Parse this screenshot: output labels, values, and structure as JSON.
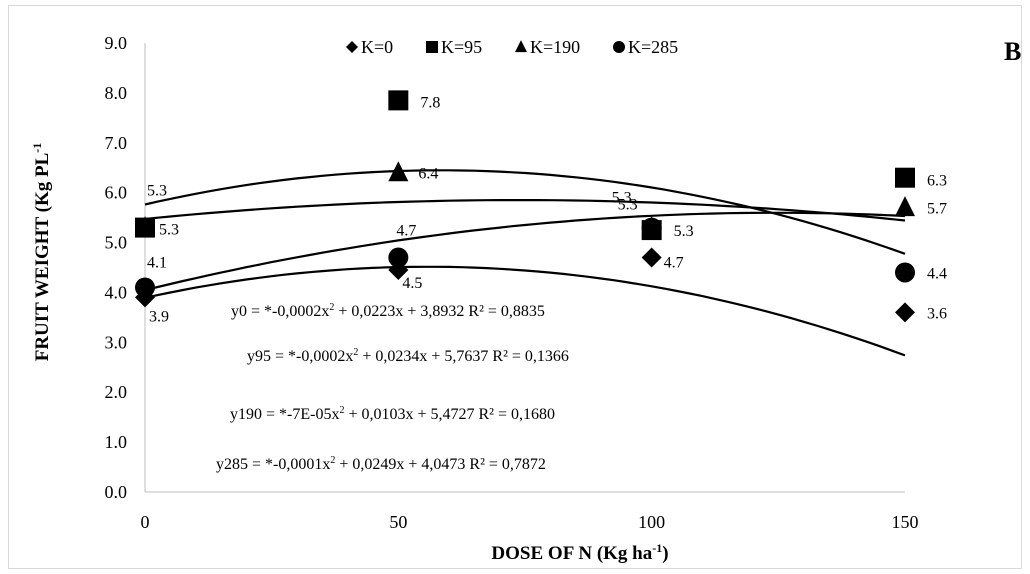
{
  "chart_data": {
    "type": "scatter",
    "panel_label": "B",
    "xlabel": "DOSE OF N (Kg ha",
    "xlabel_sup": "-1",
    "xlabel_end": ")",
    "ylabel": "FRUIT WEIGHT (Kg PL",
    "ylabel_sup": "-1",
    "xlim": [
      0,
      150
    ],
    "ylim": [
      0.0,
      9.0
    ],
    "x_ticks": [
      "0",
      "50",
      "100",
      "150"
    ],
    "y_ticks": [
      "0.0",
      "1.0",
      "2.0",
      "3.0",
      "4.0",
      "5.0",
      "6.0",
      "7.0",
      "8.0",
      "9.0"
    ],
    "grid": false,
    "legend_position": "top-center",
    "series": [
      {
        "name": "K=0",
        "marker": "diamond",
        "x": [
          0,
          50,
          100,
          150
        ],
        "y": [
          3.9,
          4.45,
          4.7,
          3.6
        ],
        "labels": [
          "3.9",
          "4.5",
          "4.7",
          "3.6"
        ],
        "trend": {
          "a": -0.0002,
          "b": 0.0223,
          "c": 3.8932
        },
        "equation": {
          "prefix": "y0 = *-0,0002x",
          "sup": "2",
          "rest": " + 0,0223x + 3,8932  R² = 0,8835"
        }
      },
      {
        "name": "K=95",
        "marker": "square",
        "x": [
          0,
          50,
          100,
          150
        ],
        "y": [
          5.3,
          7.85,
          5.25,
          6.3
        ],
        "labels": [
          "5.3",
          "7.8",
          "5.3",
          "6.3"
        ],
        "trend": {
          "a": -0.0002,
          "b": 0.0234,
          "c": 5.7637
        },
        "equation": {
          "prefix": "y95 = *-0,0002x",
          "sup": "2",
          "rest": " + 0,0234x + 5,7637  R² = 0,1366"
        }
      },
      {
        "name": "K=190",
        "marker": "triangle",
        "x": [
          0,
          50,
          100,
          150
        ],
        "y": [
          5.3,
          6.4,
          5.3,
          5.7
        ],
        "labels": [
          "5.3",
          "6.4",
          "5.3",
          "5.7"
        ],
        "trend": {
          "a": -7e-05,
          "b": 0.0103,
          "c": 5.4727
        },
        "equation": {
          "prefix": "y190 = *-7E-05x",
          "sup": "2",
          "rest": " + 0,0103x + 5,4727  R² = 0,1680"
        }
      },
      {
        "name": "K=285",
        "marker": "circle",
        "x": [
          0,
          50,
          100,
          150
        ],
        "y": [
          4.1,
          4.7,
          5.3,
          4.4
        ],
        "labels": [
          "4.1",
          "4.7",
          "5.3",
          "4.4"
        ],
        "trend": {
          "a": -0.0001,
          "b": 0.0249,
          "c": 4.0473
        },
        "equation": {
          "prefix": "y285 = *-0,0001x",
          "sup": "2",
          "rest": " + 0,0249x + 4,0473  R² = 0,7872"
        }
      }
    ]
  }
}
